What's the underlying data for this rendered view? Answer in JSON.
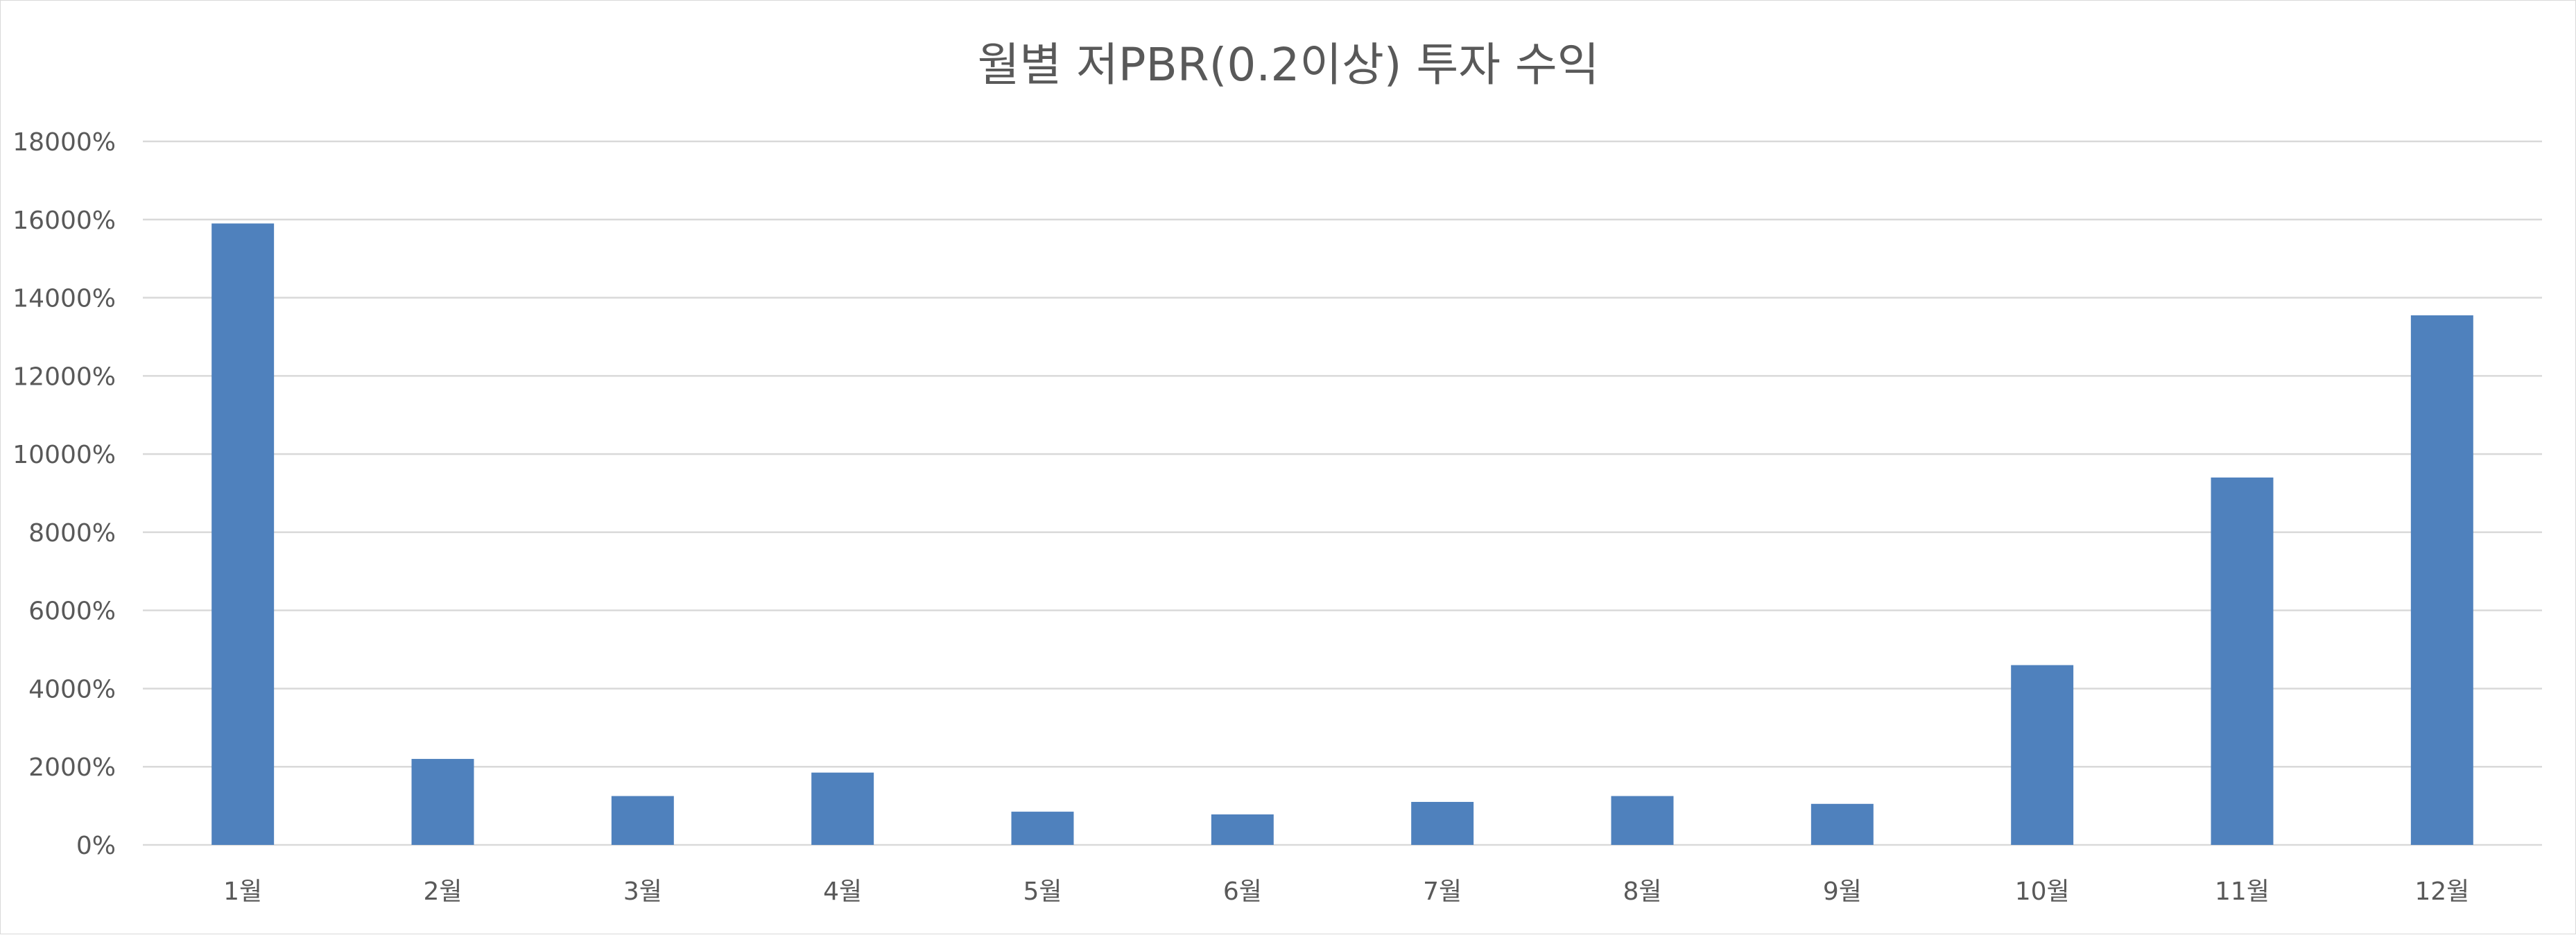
{
  "chart_data": {
    "type": "bar",
    "title": "월별 저PBR(0.2이상) 투자 수익",
    "xlabel": "",
    "ylabel": "",
    "categories": [
      "1월",
      "2월",
      "3월",
      "4월",
      "5월",
      "6월",
      "7월",
      "8월",
      "9월",
      "10월",
      "11월",
      "12월"
    ],
    "series": [
      {
        "values": [
          15900,
          2200,
          1250,
          1850,
          850,
          780,
          1100,
          1250,
          1050,
          4600,
          9400,
          13550
        ],
        "color": "#4f81bd"
      }
    ],
    "ylim": [
      0,
      18000
    ],
    "yticks": [
      0,
      2000,
      4000,
      6000,
      8000,
      10000,
      12000,
      14000,
      16000,
      18000
    ],
    "ytick_labels": [
      "0%",
      "2000%",
      "4000%",
      "6000%",
      "8000%",
      "10000%",
      "12000%",
      "14000%",
      "16000%",
      "18000%"
    ],
    "y_unit": "%",
    "grid": true,
    "legend": "none"
  }
}
